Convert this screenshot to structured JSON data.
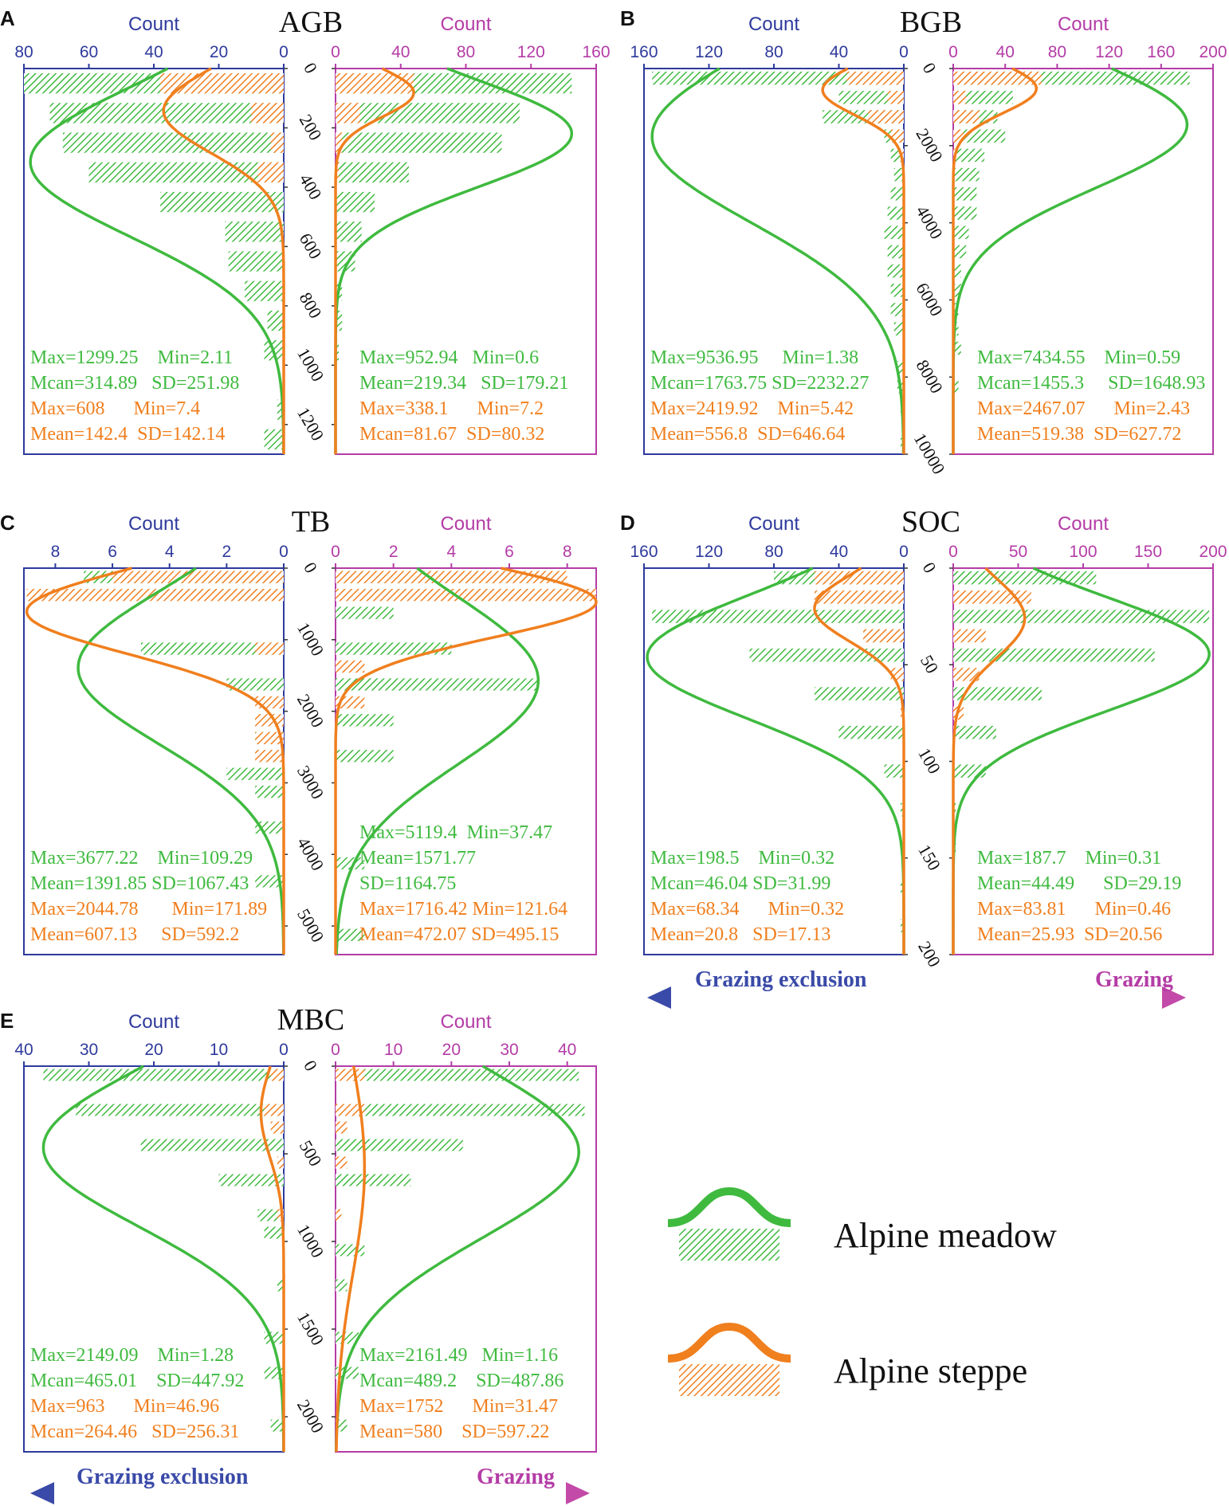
{
  "colors": {
    "exclusion_axis": "#2e3a9c",
    "grazing_axis": "#b43ca6",
    "meadow": "#3fba3f",
    "steppe": "#f07f1e",
    "arrow_left": "#3a4aa8",
    "arrow_right": "#c34aa8"
  },
  "common": {
    "count_label": "Count",
    "arrow_left_label": "Grazing exclusion",
    "arrow_right_label": "Grazing"
  },
  "legend": {
    "meadow_label": "Alpine meadow",
    "steppe_label": "Alpine steppe"
  },
  "chart_data": [
    {
      "id": "A",
      "type": "bar",
      "panel_letter": "A",
      "title": "AGB",
      "y_ticks": [
        "0",
        "200",
        "400",
        "600",
        "800",
        "1000",
        "1200"
      ],
      "ylim": [
        0,
        1300
      ],
      "left_axis": {
        "ticks": [
          "80",
          "60",
          "40",
          "20",
          "0"
        ],
        "xlim": [
          80,
          0
        ]
      },
      "right_axis": {
        "ticks": [
          "0",
          "40",
          "80",
          "120",
          "160"
        ],
        "xlim": [
          0,
          160
        ]
      },
      "bin_width": 100,
      "exclusion": {
        "meadow_bins": [
          [
            0,
            80
          ],
          [
            100,
            72
          ],
          [
            200,
            68
          ],
          [
            300,
            60
          ],
          [
            400,
            38
          ],
          [
            500,
            18
          ],
          [
            600,
            17
          ],
          [
            700,
            12
          ],
          [
            800,
            5
          ],
          [
            900,
            6
          ],
          [
            1000,
            0
          ],
          [
            1100,
            2
          ],
          [
            1200,
            6
          ]
        ],
        "steppe_bins": [
          [
            0,
            38
          ],
          [
            100,
            10
          ],
          [
            200,
            4
          ],
          [
            300,
            8
          ]
        ],
        "meadow_curve": {
          "mean": 314.89,
          "sd": 251.98,
          "peak": 78
        },
        "steppe_curve": {
          "mean": 142.4,
          "sd": 142.14,
          "peak": 37
        }
      },
      "grazing": {
        "meadow_bins": [
          [
            0,
            145
          ],
          [
            100,
            113
          ],
          [
            200,
            102
          ],
          [
            300,
            45
          ],
          [
            400,
            24
          ],
          [
            500,
            16
          ],
          [
            600,
            12
          ],
          [
            700,
            4
          ],
          [
            800,
            4
          ],
          [
            900,
            2
          ]
        ],
        "steppe_bins": [
          [
            0,
            48
          ],
          [
            100,
            15
          ],
          [
            200,
            4
          ],
          [
            300,
            2
          ]
        ],
        "meadow_curve": {
          "mean": 219.34,
          "sd": 179.21,
          "peak": 145
        },
        "steppe_curve": {
          "mean": 81.67,
          "sd": 80.32,
          "peak": 48
        }
      },
      "stats_exclusion": {
        "meadow_line1": "Max=1299.25    Min=2.11",
        "meadow_line2": "Mcan=314.89   SD=251.98",
        "steppe_line1": "Max=608      Min=7.4",
        "steppe_line2": "Mean=142.4  SD=142.14"
      },
      "stats_grazing": {
        "meadow_line1": "Max=952.94   Min=0.6",
        "meadow_line2": "Mean=219.34   SD=179.21",
        "steppe_line1": "Max=338.1      Min=7.2",
        "steppe_line2": "Mcan=81.67  SD=80.32"
      }
    },
    {
      "id": "B",
      "type": "bar",
      "panel_letter": "B",
      "title": "BGB",
      "y_ticks": [
        "0",
        "2000",
        "4000",
        "6000",
        "8000",
        "10000"
      ],
      "ylim": [
        0,
        10000
      ],
      "left_axis": {
        "ticks": [
          "160",
          "120",
          "80",
          "40",
          "0"
        ],
        "xlim": [
          160,
          0
        ]
      },
      "right_axis": {
        "ticks": [
          "0",
          "40",
          "80",
          "120",
          "160",
          "200"
        ],
        "xlim": [
          0,
          200
        ]
      },
      "bin_width": 500,
      "exclusion": {
        "meadow_bins": [
          [
            0,
            155
          ],
          [
            500,
            40
          ],
          [
            1000,
            50
          ],
          [
            1500,
            12
          ],
          [
            2000,
            8
          ],
          [
            2500,
            6
          ],
          [
            3000,
            8
          ],
          [
            3500,
            10
          ],
          [
            4000,
            12
          ],
          [
            4500,
            10
          ],
          [
            5000,
            10
          ],
          [
            5500,
            8
          ],
          [
            6000,
            8
          ],
          [
            6500,
            6
          ],
          [
            7000,
            0
          ],
          [
            7500,
            4
          ],
          [
            8000,
            4
          ],
          [
            8500,
            2
          ],
          [
            9000,
            0
          ],
          [
            9500,
            2
          ]
        ],
        "steppe_bins": [
          [
            0,
            35
          ],
          [
            500,
            10
          ],
          [
            1000,
            22
          ],
          [
            1500,
            8
          ],
          [
            2000,
            2
          ]
        ],
        "meadow_curve": {
          "mean": 1763.75,
          "sd": 2232.27,
          "peak": 155
        },
        "steppe_curve": {
          "mean": 556.8,
          "sd": 646.64,
          "peak": 50
        }
      },
      "grazing": {
        "meadow_bins": [
          [
            0,
            182
          ],
          [
            500,
            46
          ],
          [
            1000,
            34
          ],
          [
            1500,
            40
          ],
          [
            2000,
            24
          ],
          [
            2500,
            20
          ],
          [
            3000,
            18
          ],
          [
            3500,
            18
          ],
          [
            4000,
            12
          ],
          [
            4500,
            10
          ],
          [
            5000,
            6
          ],
          [
            5500,
            6
          ],
          [
            6000,
            4
          ],
          [
            6500,
            4
          ],
          [
            7000,
            6
          ],
          [
            7500,
            0
          ],
          [
            8000,
            4
          ]
        ],
        "steppe_bins": [
          [
            0,
            68
          ],
          [
            500,
            10
          ],
          [
            1000,
            20
          ],
          [
            1500,
            8
          ],
          [
            2000,
            2
          ]
        ],
        "meadow_curve": {
          "mean": 1455.3,
          "sd": 1648.93,
          "peak": 180
        },
        "steppe_curve": {
          "mean": 519.38,
          "sd": 627.72,
          "peak": 64
        }
      },
      "stats_exclusion": {
        "meadow_line1": "Max=9536.95     Min=1.38",
        "meadow_line2": "Mcan=1763.75 SD=2232.27",
        "steppe_line1": "Max=2419.92    Min=5.42",
        "steppe_line2": "Mean=556.8  SD=646.64"
      },
      "stats_grazing": {
        "meadow_line1": "Max=7434.55    Min=0.59",
        "meadow_line2": "Mcan=1455.3     SD=1648.93",
        "steppe_line1": "Max=2467.07      Min=2.43",
        "steppe_line2": "Mean=519.38  SD=627.72"
      }
    },
    {
      "id": "C",
      "type": "bar",
      "panel_letter": "C",
      "title": "TB",
      "y_ticks": [
        "0",
        "1000",
        "2000",
        "3000",
        "4000",
        "5000"
      ],
      "ylim": [
        0,
        5400
      ],
      "left_axis": {
        "ticks": [
          "8",
          "6",
          "4",
          "2",
          "0"
        ],
        "xlim": [
          9.1,
          0
        ]
      },
      "right_axis": {
        "ticks": [
          "0",
          "2",
          "4",
          "6",
          "8"
        ],
        "xlim": [
          0,
          9
        ]
      },
      "bin_width": 250,
      "exclusion": {
        "meadow_bins": [
          [
            0,
            7
          ],
          [
            1000,
            5
          ],
          [
            1500,
            2
          ],
          [
            2000,
            1
          ],
          [
            2250,
            1
          ],
          [
            2500,
            0
          ],
          [
            2750,
            2
          ],
          [
            3000,
            1
          ],
          [
            3500,
            1
          ],
          [
            4000,
            0
          ],
          [
            4250,
            1
          ]
        ],
        "steppe_bins": [
          [
            0,
            6
          ],
          [
            250,
            9
          ],
          [
            1000,
            1
          ],
          [
            1750,
            1
          ],
          [
            2000,
            1
          ],
          [
            2250,
            1
          ],
          [
            2500,
            1
          ]
        ],
        "meadow_curve": {
          "mean": 1391.85,
          "sd": 1067.43,
          "peak": 7.2
        },
        "steppe_curve": {
          "mean": 607.13,
          "sd": 592.2,
          "peak": 9
        }
      },
      "grazing": {
        "meadow_bins": [
          [
            0,
            6
          ],
          [
            500,
            2
          ],
          [
            1000,
            4
          ],
          [
            1500,
            7
          ],
          [
            2000,
            2
          ],
          [
            2500,
            2
          ],
          [
            4000,
            1
          ],
          [
            5000,
            1
          ]
        ],
        "steppe_bins": [
          [
            0,
            8
          ],
          [
            250,
            9
          ],
          [
            1250,
            1
          ],
          [
            1750,
            1
          ]
        ],
        "meadow_curve": {
          "mean": 1571.77,
          "sd": 1164.75,
          "peak": 7
        },
        "steppe_curve": {
          "mean": 472.07,
          "sd": 495.15,
          "peak": 9
        }
      },
      "stats_exclusion": {
        "meadow_line1": "Max=3677.22    Min=109.29",
        "meadow_line2": "Mean=1391.85 SD=1067.43",
        "steppe_line1": "Max=2044.78       Min=171.89",
        "steppe_line2": "Mean=607.13     SD=592.2"
      },
      "stats_grazing": {
        "meadow_line1": "Max=5119.4  Min=37.47",
        "meadow_line2": "Mean=1571.77",
        "meadow_line3": "SD=1164.75",
        "steppe_line1": "Max=1716.42 Min=121.64",
        "steppe_line2": "Mean=472.07 SD=495.15"
      }
    },
    {
      "id": "D",
      "type": "bar",
      "panel_letter": "D",
      "title": "SOC",
      "y_ticks": [
        "0",
        "50",
        "100",
        "150",
        "200"
      ],
      "ylim": [
        0,
        200
      ],
      "left_axis": {
        "ticks": [
          "160",
          "120",
          "80",
          "40",
          "0"
        ],
        "xlim": [
          160,
          0
        ]
      },
      "right_axis": {
        "ticks": [
          "0",
          "50",
          "100",
          "150",
          "200"
        ],
        "xlim": [
          0,
          200
        ]
      },
      "bin_width": 10,
      "exclusion": {
        "meadow_bins": [
          [
            0,
            80
          ],
          [
            20,
            155
          ],
          [
            40,
            95
          ],
          [
            60,
            55
          ],
          [
            80,
            40
          ],
          [
            100,
            12
          ],
          [
            120,
            2
          ],
          [
            140,
            1
          ],
          [
            160,
            2
          ],
          [
            180,
            2
          ]
        ],
        "steppe_bins": [
          [
            0,
            55
          ],
          [
            10,
            55
          ],
          [
            30,
            25
          ],
          [
            50,
            8
          ],
          [
            70,
            2
          ]
        ],
        "meadow_curve": {
          "mean": 46.04,
          "sd": 31.99,
          "peak": 158
        },
        "steppe_curve": {
          "mean": 20.8,
          "sd": 17.13,
          "peak": 55
        }
      },
      "grazing": {
        "meadow_bins": [
          [
            0,
            110
          ],
          [
            20,
            197
          ],
          [
            40,
            155
          ],
          [
            60,
            68
          ],
          [
            80,
            33
          ],
          [
            100,
            25
          ],
          [
            120,
            2
          ],
          [
            140,
            2
          ],
          [
            180,
            1
          ]
        ],
        "steppe_bins": [
          [
            10,
            60
          ],
          [
            30,
            25
          ],
          [
            50,
            20
          ],
          [
            70,
            8
          ]
        ],
        "meadow_curve": {
          "mean": 44.49,
          "sd": 29.19,
          "peak": 197
        },
        "steppe_curve": {
          "mean": 25.93,
          "sd": 20.56,
          "peak": 55
        }
      },
      "stats_exclusion": {
        "meadow_line1": "Max=198.5    Min=0.32",
        "meadow_line2": "Mcan=46.04 SD=31.99",
        "steppe_line1": "Max=68.34      Min=0.32",
        "steppe_line2": "Mean=20.8   SD=17.13"
      },
      "stats_grazing": {
        "meadow_line1": "Max=187.7    Min=0.31",
        "meadow_line2": "Mean=44.49      SD=29.19",
        "steppe_line1": "Max=83.81      Min=0.46",
        "steppe_line2": "Mean=25.93  SD=20.56"
      }
    },
    {
      "id": "E",
      "type": "bar",
      "panel_letter": "E",
      "title": "MBC",
      "y_ticks": [
        "0",
        "500",
        "1000",
        "1500",
        "2000"
      ],
      "ylim": [
        0,
        2200
      ],
      "left_axis": {
        "ticks": [
          "40",
          "30",
          "20",
          "10",
          "0"
        ],
        "xlim": [
          40,
          0
        ]
      },
      "right_axis": {
        "ticks": [
          "0",
          "10",
          "20",
          "30",
          "40"
        ],
        "xlim": [
          0,
          45
        ]
      },
      "bin_width": 100,
      "exclusion": {
        "meadow_bins": [
          [
            0,
            37
          ],
          [
            200,
            32
          ],
          [
            400,
            22
          ],
          [
            600,
            10
          ],
          [
            800,
            4
          ],
          [
            900,
            3
          ],
          [
            1200,
            1
          ],
          [
            1500,
            3
          ],
          [
            1700,
            3
          ],
          [
            2000,
            2
          ]
        ],
        "steppe_bins": [
          [
            0,
            2
          ],
          [
            200,
            3
          ],
          [
            300,
            2
          ],
          [
            500,
            1
          ],
          [
            800,
            1
          ]
        ],
        "meadow_curve": {
          "mean": 465.01,
          "sd": 447.92,
          "peak": 37
        },
        "steppe_curve": {
          "mean": 264.46,
          "sd": 256.31,
          "peak": 3.5
        }
      },
      "grazing": {
        "meadow_bins": [
          [
            0,
            42
          ],
          [
            200,
            43
          ],
          [
            400,
            22
          ],
          [
            600,
            13
          ],
          [
            800,
            1
          ],
          [
            1000,
            5
          ],
          [
            1200,
            2
          ],
          [
            1500,
            4
          ],
          [
            1700,
            4
          ],
          [
            2000,
            2
          ]
        ],
        "steppe_bins": [
          [
            0,
            5
          ],
          [
            200,
            5
          ],
          [
            300,
            2
          ],
          [
            500,
            2
          ],
          [
            800,
            1
          ]
        ],
        "meadow_curve": {
          "mean": 489.2,
          "sd": 487.86,
          "peak": 42
        },
        "steppe_curve": {
          "mean": 580,
          "sd": 597.22,
          "peak": 5
        }
      },
      "stats_exclusion": {
        "meadow_line1": "Max=2149.09    Min=1.28",
        "meadow_line2": "Mcan=465.01    SD=447.92",
        "steppe_line1": "Max=963      Min=46.96",
        "steppe_line2": "Mcan=264.46   SD=256.31"
      },
      "stats_grazing": {
        "meadow_line1": "Max=2161.49   Min=1.16",
        "meadow_line2": "Mcan=489.2    SD=487.86",
        "steppe_line1": "Max=1752      Min=31.47",
        "steppe_line2": "Mean=580    SD=597.22"
      }
    }
  ]
}
